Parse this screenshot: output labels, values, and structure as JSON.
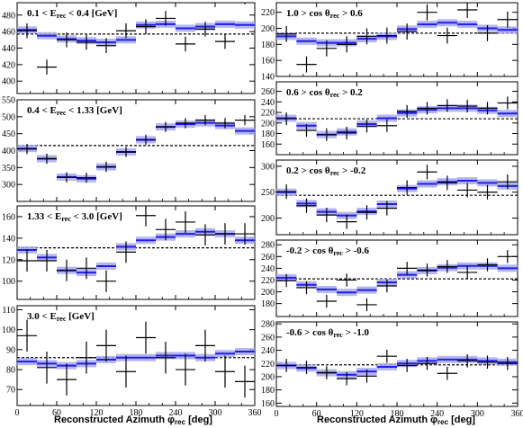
{
  "figure": {
    "left_xlabel": "Reconstructed Azimuth  φ",
    "left_xlabel_sub": "rec",
    "left_xlabel_unit": " [deg]",
    "right_xlabel": "Reconstructed Azimuth  φ",
    "right_xlabel_sub": "rec",
    "right_xlabel_unit": " [deg]"
  },
  "chart_data": [
    {
      "type": "scatter",
      "title": "0.1 < E_rec < 0.4 [GeV]",
      "title_parts": [
        "0.1 < E",
        "rec",
        " < 0.4 [GeV]"
      ],
      "ylim": [
        385,
        495
      ],
      "yticks": [
        400,
        420,
        440,
        460,
        480
      ],
      "xlim": [
        0,
        360
      ],
      "xticks": [
        0,
        60,
        120,
        180,
        240,
        300,
        360
      ],
      "show_xticklabels": false,
      "dashed_level": 457,
      "x": [
        15,
        45,
        75,
        105,
        135,
        165,
        195,
        225,
        255,
        285,
        315,
        345
      ],
      "data": [
        461,
        417,
        450,
        447,
        443,
        461,
        466,
        476,
        445,
        463,
        448,
        502
      ],
      "data_err": [
        9,
        9,
        9,
        9,
        9,
        9,
        9,
        9,
        9,
        9,
        9,
        9
      ],
      "model": [
        462,
        455,
        451,
        449,
        447,
        450,
        468,
        469,
        464,
        466,
        469,
        468
      ]
    },
    {
      "type": "scatter",
      "title": "0.4 < E_rec < 1.33 [GeV]",
      "title_parts": [
        "0.4 < E",
        "rec",
        " < 1.33 [GeV]"
      ],
      "ylim": [
        250,
        550
      ],
      "yticks": [
        300,
        350,
        400,
        450,
        500,
        550
      ],
      "xlim": [
        0,
        360
      ],
      "xticks": [
        0,
        60,
        120,
        180,
        240,
        300,
        360
      ],
      "show_xticklabels": false,
      "dashed_level": 415,
      "x": [
        15,
        45,
        75,
        105,
        135,
        165,
        195,
        225,
        255,
        285,
        315,
        345
      ],
      "data": [
        405,
        376,
        321,
        320,
        352,
        396,
        432,
        470,
        481,
        490,
        481,
        490
      ],
      "data_err": [
        15,
        15,
        15,
        15,
        15,
        15,
        15,
        15,
        15,
        15,
        15,
        15
      ],
      "model": [
        406,
        376,
        322,
        317,
        352,
        396,
        432,
        470,
        478,
        482,
        474,
        458
      ]
    },
    {
      "type": "scatter",
      "title": "1.33 < E_rec < 3.0 [GeV]",
      "title_parts": [
        "1.33 < E",
        "rec",
        " < 3.0 [GeV]"
      ],
      "ylim": [
        83,
        170
      ],
      "yticks": [
        100,
        120,
        140,
        160
      ],
      "xlim": [
        0,
        360
      ],
      "xticks": [
        0,
        60,
        120,
        180,
        240,
        300,
        360
      ],
      "show_xticklabels": false,
      "dashed_level": 131,
      "x": [
        15,
        45,
        75,
        105,
        135,
        165,
        195,
        225,
        255,
        285,
        315,
        345
      ],
      "data": [
        119,
        119,
        110,
        112,
        100,
        127,
        161,
        148,
        155,
        143,
        144,
        144
      ],
      "data_err": [
        10,
        10,
        10,
        10,
        10,
        10,
        10,
        10,
        10,
        10,
        10,
        10
      ],
      "model": [
        129,
        122,
        110,
        108,
        114,
        132,
        138,
        141,
        144,
        146,
        144,
        138
      ]
    },
    {
      "type": "scatter",
      "title": "3.0 < E_rec [GeV]",
      "title_parts": [
        "3.0 < E",
        "rec",
        " [GeV]"
      ],
      "ylim": [
        62,
        112
      ],
      "yticks": [
        70,
        80,
        90,
        100,
        110
      ],
      "xlim": [
        0,
        360
      ],
      "xticks": [
        0,
        60,
        120,
        180,
        240,
        300,
        360
      ],
      "show_xticklabels": true,
      "dashed_level": 86,
      "x": [
        15,
        45,
        75,
        105,
        135,
        165,
        195,
        225,
        255,
        285,
        315,
        345
      ],
      "data": [
        97,
        81,
        75,
        86,
        92,
        79,
        96,
        86,
        80,
        92,
        79,
        74
      ],
      "data_err": [
        8,
        8,
        8,
        8,
        8,
        8,
        8,
        8,
        8,
        8,
        8,
        8
      ],
      "model": [
        84,
        83,
        82,
        83,
        85,
        86,
        86,
        87,
        87,
        86,
        88,
        89
      ]
    },
    {
      "type": "scatter",
      "title": "1.0 > cos θ_rec > 0.6",
      "title_parts": [
        "1.0 > cos θ",
        "rec",
        " > 0.6"
      ],
      "ylim": [
        140,
        232
      ],
      "yticks": [
        140,
        160,
        180,
        200,
        220
      ],
      "xlim": [
        0,
        360
      ],
      "xticks": [
        0,
        60,
        120,
        180,
        240,
        300,
        360
      ],
      "show_xticklabels": false,
      "dashed_level": 194,
      "x": [
        15,
        45,
        75,
        105,
        135,
        165,
        195,
        225,
        255,
        285,
        315,
        345
      ],
      "data": [
        193,
        155,
        175,
        180,
        190,
        191,
        196,
        220,
        191,
        223,
        194,
        211
      ],
      "data_err": [
        10,
        10,
        10,
        10,
        10,
        10,
        10,
        10,
        10,
        10,
        10,
        10
      ],
      "model": [
        190,
        184,
        182,
        182,
        187,
        190,
        199,
        205,
        207,
        205,
        200,
        198
      ]
    },
    {
      "type": "scatter",
      "title": "0.6 > cos θ_rec > 0.2",
      "title_parts": [
        "0.6 > cos θ",
        "rec",
        " > 0.2"
      ],
      "ylim": [
        140,
        278
      ],
      "yticks": [
        160,
        180,
        200,
        220,
        240,
        260
      ],
      "xlim": [
        0,
        360
      ],
      "xticks": [
        0,
        60,
        120,
        180,
        240,
        300,
        360
      ],
      "show_xticklabels": false,
      "dashed_level": 208,
      "x": [
        15,
        45,
        75,
        105,
        135,
        165,
        195,
        225,
        255,
        285,
        315,
        345
      ],
      "data": [
        208,
        186,
        178,
        181,
        194,
        195,
        222,
        228,
        233,
        232,
        228,
        238
      ],
      "data_err": [
        12,
        12,
        12,
        12,
        12,
        12,
        12,
        12,
        12,
        12,
        12,
        12
      ],
      "model": [
        209,
        195,
        178,
        183,
        198,
        209,
        219,
        225,
        228,
        228,
        224,
        218
      ]
    },
    {
      "type": "scatter",
      "title": "0.2 > cos θ_rec > -0.2",
      "title_parts": [
        "0.2 > cos θ",
        "rec",
        " > -0.2"
      ],
      "ylim": [
        168,
        312
      ],
      "yticks": [
        200,
        250,
        300
      ],
      "xlim": [
        0,
        360
      ],
      "xticks": [
        0,
        60,
        120,
        180,
        240,
        300,
        360
      ],
      "show_xticklabels": false,
      "dashed_level": 244,
      "x": [
        15,
        45,
        75,
        105,
        135,
        165,
        195,
        225,
        255,
        285,
        315,
        345
      ],
      "data": [
        251,
        224,
        206,
        193,
        211,
        219,
        259,
        289,
        268,
        254,
        250,
        270
      ],
      "data_err": [
        14,
        14,
        14,
        14,
        14,
        14,
        14,
        14,
        14,
        14,
        14,
        14
      ],
      "model": [
        250,
        228,
        212,
        205,
        213,
        227,
        257,
        266,
        270,
        272,
        268,
        262
      ]
    },
    {
      "type": "scatter",
      "title": "-0.2 > cos θ_rec > -0.6",
      "title_parts": [
        "-0.2 > cos θ",
        "rec",
        " > -0.6"
      ],
      "ylim": [
        158,
        288
      ],
      "yticks": [
        180,
        200,
        220,
        240,
        260,
        280
      ],
      "xlim": [
        0,
        360
      ],
      "xticks": [
        0,
        60,
        120,
        180,
        240,
        300,
        360
      ],
      "show_xticklabels": false,
      "dashed_level": 222,
      "x": [
        15,
        45,
        75,
        105,
        135,
        165,
        195,
        225,
        255,
        285,
        315,
        345
      ],
      "data": [
        219,
        207,
        184,
        220,
        178,
        210,
        240,
        237,
        243,
        233,
        246,
        260
      ],
      "data_err": [
        11,
        11,
        11,
        11,
        11,
        11,
        11,
        11,
        11,
        11,
        11,
        11
      ],
      "model": [
        224,
        212,
        204,
        199,
        203,
        216,
        229,
        236,
        241,
        244,
        244,
        240
      ]
    },
    {
      "type": "scatter",
      "title": "-0.6 > cos θ_rec > -1.0",
      "title_parts": [
        "-0.6 > cos θ",
        "rec",
        " > -1.0"
      ],
      "ylim": [
        155,
        283
      ],
      "yticks": [
        160,
        180,
        200,
        220,
        240,
        260,
        280
      ],
      "xlim": [
        0,
        360
      ],
      "xticks": [
        0,
        60,
        120,
        180,
        240,
        300,
        360
      ],
      "show_xticklabels": true,
      "dashed_level": 218,
      "x": [
        15,
        45,
        75,
        105,
        135,
        165,
        195,
        225,
        255,
        285,
        315,
        345
      ],
      "data": [
        217,
        214,
        206,
        197,
        201,
        231,
        217,
        220,
        205,
        224,
        222,
        220
      ],
      "data_err": [
        10,
        10,
        10,
        10,
        10,
        10,
        10,
        10,
        10,
        10,
        10,
        10
      ],
      "model": [
        217,
        213,
        206,
        203,
        208,
        215,
        220,
        224,
        226,
        226,
        224,
        222
      ]
    }
  ]
}
